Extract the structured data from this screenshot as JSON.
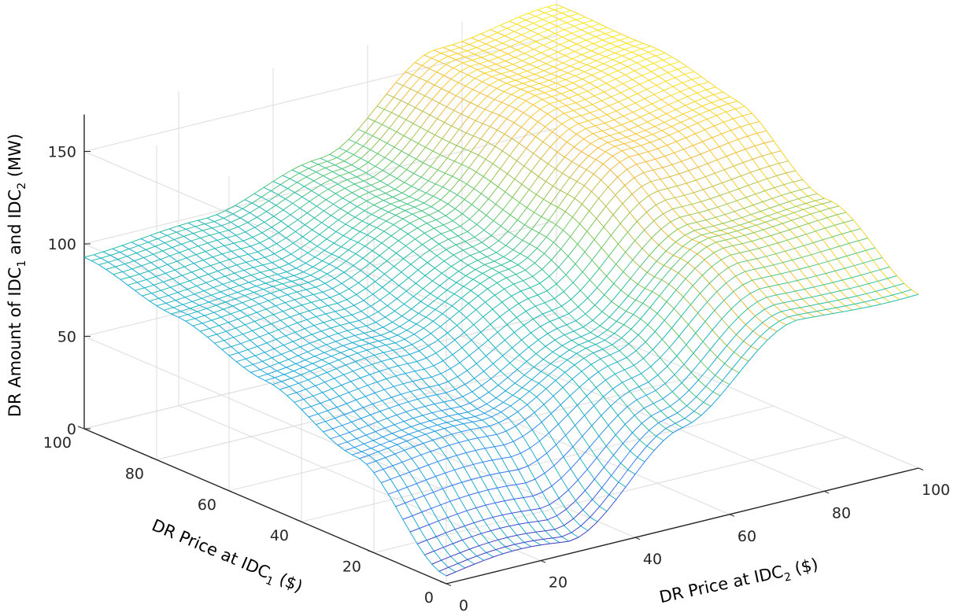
{
  "chart_data": {
    "type": "surface",
    "mesh": "wireframe",
    "colormap": "parula",
    "grid": true,
    "x": {
      "label_prefix": "DR Price at IDC",
      "label_subscript": "2",
      "label_suffix": " ($)",
      "range": [
        0,
        100
      ],
      "ticks": [
        0,
        20,
        40,
        60,
        80,
        100
      ]
    },
    "y": {
      "label_prefix": "DR Price at IDC",
      "label_subscript": "1",
      "label_suffix": " ($)",
      "range": [
        0,
        100
      ],
      "ticks": [
        0,
        20,
        40,
        60,
        80,
        100
      ]
    },
    "z": {
      "label": [
        "DR Amount of IDC",
        "1",
        " and IDC",
        "2",
        " (MW)"
      ],
      "range": [
        0,
        170
      ],
      "ticks": [
        0,
        50,
        100,
        150
      ]
    },
    "surface_samples": {
      "note_axes": "rows = DR Price at IDC1 (y) ascending, cols = DR Price at IDC2 (x) ascending",
      "y": [
        0,
        25,
        50,
        75,
        100
      ],
      "x": [
        0,
        25,
        50,
        75,
        100
      ],
      "z": [
        [
          4,
          5,
          55,
          91,
          95
        ],
        [
          48,
          52,
          80,
          120,
          128
        ],
        [
          68,
          74,
          100,
          148,
          158
        ],
        [
          82,
          86,
          110,
          156,
          164
        ],
        [
          93,
          98,
          116,
          160,
          170
        ]
      ]
    }
  }
}
